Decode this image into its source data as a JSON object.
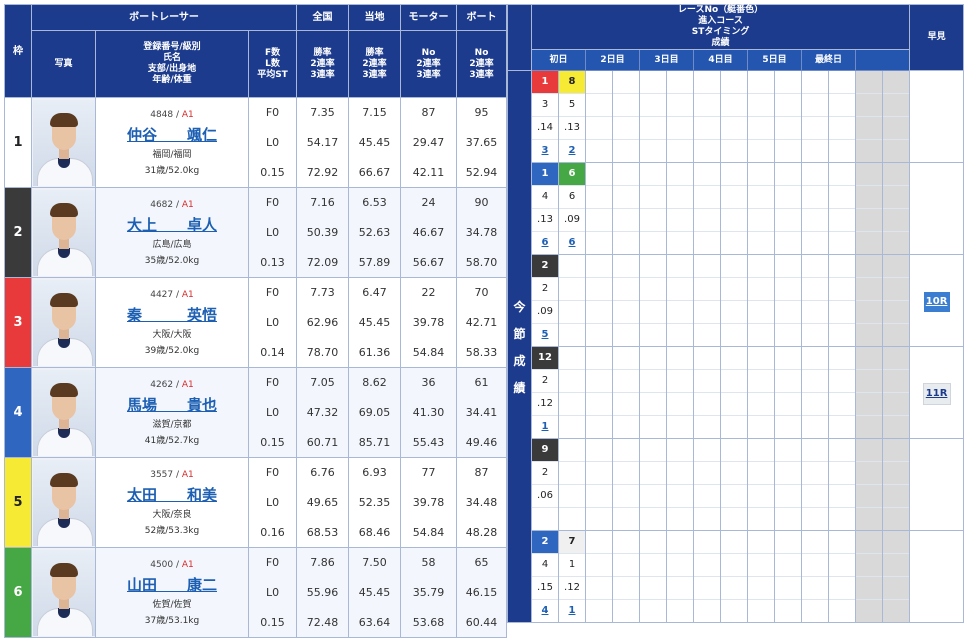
{
  "header": {
    "waku": "枠",
    "photo": "写真",
    "boatracer": "ボートレーサー",
    "racer_sub": [
      "登録番号/級別",
      "氏名",
      "支部/出身地",
      "年齢/体重"
    ],
    "fl": [
      "F数",
      "L数",
      "平均ST"
    ],
    "national": "全国",
    "national_sub": [
      "勝率",
      "2連率",
      "3連率"
    ],
    "local": "当地",
    "local_sub": [
      "勝率",
      "2連率",
      "3連率"
    ],
    "motor": "モーター",
    "motor_sub": [
      "No",
      "2連率",
      "3連率"
    ],
    "boat": "ボート",
    "boat_sub": [
      "No",
      "2連率",
      "3連率"
    ],
    "race_title": [
      "レースNo（艇番色）",
      "進入コース",
      "STタイミング",
      "成績"
    ],
    "days": [
      "初日",
      "2日目",
      "3日目",
      "4日目",
      "5日目",
      "最終日"
    ],
    "early": "早見",
    "konsetsu": [
      "今",
      "節",
      "成",
      "績"
    ]
  },
  "racers": [
    {
      "waku": "1",
      "regno": "4848",
      "cls": "A1",
      "name": "仲谷　　颯仁",
      "branch": "福岡/福岡",
      "age": "31歳/52.0kg",
      "fl": [
        "F0",
        "L0",
        "0.15"
      ],
      "national": [
        "7.35",
        "54.17",
        "72.92"
      ],
      "local": [
        "7.15",
        "45.45",
        "66.67"
      ],
      "motor": [
        "87",
        "29.47",
        "42.11"
      ],
      "boat": [
        "95",
        "37.65",
        "52.94"
      ],
      "races": [
        {
          "race": "1",
          "race_color": "1",
          "course": "3",
          "st": ".14",
          "result": "3"
        },
        {
          "race": "8",
          "race_color": "5",
          "course": "5",
          "st": ".13",
          "result": "2"
        }
      ],
      "early": ""
    },
    {
      "waku": "2",
      "regno": "4682",
      "cls": "A1",
      "name": "大上　　卓人",
      "branch": "広島/広島",
      "age": "35歳/52.0kg",
      "fl": [
        "F0",
        "L0",
        "0.13"
      ],
      "national": [
        "7.16",
        "50.39",
        "72.09"
      ],
      "local": [
        "6.53",
        "52.63",
        "57.89"
      ],
      "motor": [
        "24",
        "46.67",
        "56.67"
      ],
      "boat": [
        "90",
        "34.78",
        "58.70"
      ],
      "races": [
        {
          "race": "1",
          "race_color": "4",
          "course": "4",
          "st": ".13",
          "result": "6"
        },
        {
          "race": "6",
          "race_color": "6",
          "course": "6",
          "st": ".09",
          "result": "6"
        }
      ],
      "early": ""
    },
    {
      "waku": "3",
      "regno": "4427",
      "cls": "A1",
      "name": "秦　　　英悟",
      "branch": "大阪/大阪",
      "age": "39歳/52.0kg",
      "fl": [
        "F0",
        "L0",
        "0.14"
      ],
      "national": [
        "7.73",
        "62.96",
        "78.70"
      ],
      "local": [
        "6.47",
        "45.45",
        "61.36"
      ],
      "motor": [
        "22",
        "39.78",
        "54.84"
      ],
      "boat": [
        "70",
        "42.71",
        "58.33"
      ],
      "races": [
        {
          "race": "2",
          "race_color": "2",
          "course": "2",
          "st": ".09",
          "result": "5"
        }
      ],
      "early": "10R"
    },
    {
      "waku": "4",
      "regno": "4262",
      "cls": "A1",
      "name": "馬場　　貴也",
      "branch": "滋賀/京都",
      "age": "41歳/52.7kg",
      "fl": [
        "F0",
        "L0",
        "0.15"
      ],
      "national": [
        "7.05",
        "47.32",
        "60.71"
      ],
      "local": [
        "8.62",
        "69.05",
        "85.71"
      ],
      "motor": [
        "36",
        "41.30",
        "55.43"
      ],
      "boat": [
        "61",
        "34.41",
        "49.46"
      ],
      "races": [
        {
          "race": "12",
          "race_color": "2",
          "course": "2",
          "st": ".12",
          "result": "1"
        }
      ],
      "early": "11R"
    },
    {
      "waku": "5",
      "regno": "3557",
      "cls": "A1",
      "name": "太田　　和美",
      "branch": "大阪/奈良",
      "age": "52歳/53.3kg",
      "fl": [
        "F0",
        "L0",
        "0.16"
      ],
      "national": [
        "6.76",
        "49.65",
        "68.53"
      ],
      "local": [
        "6.93",
        "52.35",
        "68.46"
      ],
      "motor": [
        "77",
        "39.78",
        "54.84"
      ],
      "boat": [
        "87",
        "34.48",
        "48.28"
      ],
      "races": [
        {
          "race": "9",
          "race_color": "2",
          "course": "2",
          "st": ".06",
          "result": ""
        }
      ],
      "early": ""
    },
    {
      "waku": "6",
      "regno": "4500",
      "cls": "A1",
      "name": "山田　　康二",
      "branch": "佐賀/佐賀",
      "age": "37歳/53.1kg",
      "fl": [
        "F0",
        "L0",
        "0.15"
      ],
      "national": [
        "7.86",
        "55.96",
        "72.48"
      ],
      "local": [
        "7.50",
        "45.45",
        "63.64"
      ],
      "motor": [
        "58",
        "35.79",
        "53.68"
      ],
      "boat": [
        "65",
        "46.15",
        "60.44"
      ],
      "races": [
        {
          "race": "2",
          "race_color": "4",
          "course": "4",
          "st": ".15",
          "result": "4"
        },
        {
          "race": "7",
          "race_color": "w",
          "course": "1",
          "st": ".12",
          "result": "1"
        }
      ],
      "early": ""
    }
  ]
}
